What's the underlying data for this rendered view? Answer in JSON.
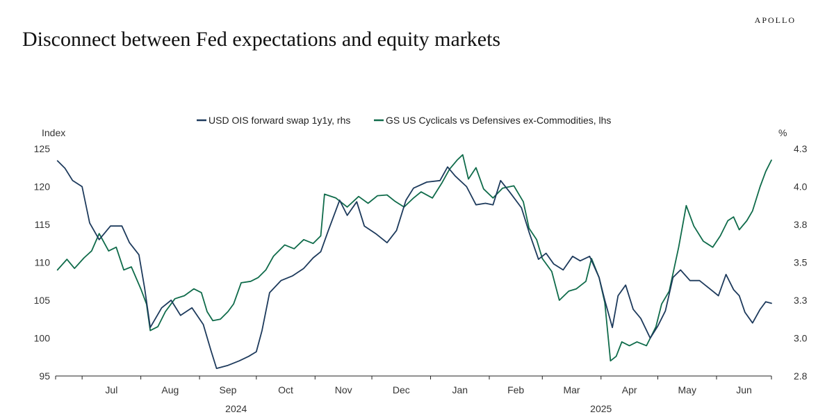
{
  "header": {
    "brand": "APOLLO",
    "title": "Disconnect between Fed expectations and equity markets"
  },
  "colors": {
    "ois": "#1d3a5c",
    "gs": "#0f6b4a",
    "axis": "#222222"
  },
  "chart_data": {
    "type": "line",
    "title": "Disconnect between Fed expectations and equity markets",
    "left_axis": {
      "unit": "Index",
      "min": 95,
      "max": 125,
      "ticks": [
        95,
        100,
        105,
        110,
        115,
        120,
        125
      ]
    },
    "right_axis": {
      "unit": "%",
      "min": 2.8,
      "max": 4.3,
      "ticks": [
        "2.8",
        "3.0",
        "3.3",
        "3.5",
        "3.8",
        "4.0",
        "4.3"
      ],
      "tick_values": [
        2.8,
        3.05,
        3.3,
        3.55,
        3.8,
        4.05,
        4.3
      ]
    },
    "x_months": [
      "Jul",
      "Aug",
      "Sep",
      "Oct",
      "Nov",
      "Dec",
      "Jan",
      "Feb",
      "Mar",
      "Apr",
      "May",
      "Jun"
    ],
    "x_years": [
      "2024",
      "2025"
    ],
    "x_range": [
      "2024-06-17",
      "2025-06-30"
    ],
    "legend": [
      "USD OIS forward swap 1y1y, rhs",
      "GS US Cyclicals vs Defensives ex-Commodities, lhs"
    ],
    "series": [
      {
        "name": "USD OIS forward swap 1y1y, rhs",
        "axis": "right",
        "points": [
          [
            "2024-06-18",
            4.22
          ],
          [
            "2024-06-22",
            4.17
          ],
          [
            "2024-06-26",
            4.09
          ],
          [
            "2024-07-01",
            4.05
          ],
          [
            "2024-07-05",
            3.81
          ],
          [
            "2024-07-10",
            3.7
          ],
          [
            "2024-07-16",
            3.79
          ],
          [
            "2024-07-22",
            3.79
          ],
          [
            "2024-07-26",
            3.68
          ],
          [
            "2024-07-31",
            3.6
          ],
          [
            "2024-08-03",
            3.38
          ],
          [
            "2024-08-06",
            3.12
          ],
          [
            "2024-08-12",
            3.25
          ],
          [
            "2024-08-17",
            3.3
          ],
          [
            "2024-08-22",
            3.2
          ],
          [
            "2024-08-28",
            3.25
          ],
          [
            "2024-09-03",
            3.14
          ],
          [
            "2024-09-07",
            2.97
          ],
          [
            "2024-09-10",
            2.85
          ],
          [
            "2024-09-16",
            2.87
          ],
          [
            "2024-09-22",
            2.9
          ],
          [
            "2024-09-27",
            2.93
          ],
          [
            "2024-10-01",
            2.96
          ],
          [
            "2024-10-04",
            3.1
          ],
          [
            "2024-10-08",
            3.35
          ],
          [
            "2024-10-14",
            3.43
          ],
          [
            "2024-10-20",
            3.46
          ],
          [
            "2024-10-26",
            3.51
          ],
          [
            "2024-10-31",
            3.58
          ],
          [
            "2024-11-04",
            3.62
          ],
          [
            "2024-11-08",
            3.76
          ],
          [
            "2024-11-14",
            3.96
          ],
          [
            "2024-11-18",
            3.86
          ],
          [
            "2024-11-23",
            3.95
          ],
          [
            "2024-11-27",
            3.79
          ],
          [
            "2024-12-03",
            3.74
          ],
          [
            "2024-12-09",
            3.68
          ],
          [
            "2024-12-14",
            3.76
          ],
          [
            "2024-12-19",
            3.96
          ],
          [
            "2024-12-23",
            4.04
          ],
          [
            "2024-12-30",
            4.08
          ],
          [
            "2025-01-06",
            4.09
          ],
          [
            "2025-01-10",
            4.18
          ],
          [
            "2025-01-14",
            4.12
          ],
          [
            "2025-01-20",
            4.05
          ],
          [
            "2025-01-25",
            3.93
          ],
          [
            "2025-01-30",
            3.94
          ],
          [
            "2025-02-03",
            3.93
          ],
          [
            "2025-02-07",
            4.09
          ],
          [
            "2025-02-12",
            4.01
          ],
          [
            "2025-02-18",
            3.91
          ],
          [
            "2025-02-22",
            3.75
          ],
          [
            "2025-02-27",
            3.57
          ],
          [
            "2025-03-03",
            3.61
          ],
          [
            "2025-03-07",
            3.54
          ],
          [
            "2025-03-12",
            3.5
          ],
          [
            "2025-03-17",
            3.59
          ],
          [
            "2025-03-21",
            3.56
          ],
          [
            "2025-03-26",
            3.59
          ],
          [
            "2025-03-31",
            3.45
          ],
          [
            "2025-04-03",
            3.3
          ],
          [
            "2025-04-07",
            3.12
          ],
          [
            "2025-04-10",
            3.33
          ],
          [
            "2025-04-14",
            3.4
          ],
          [
            "2025-04-18",
            3.24
          ],
          [
            "2025-04-22",
            3.18
          ],
          [
            "2025-04-27",
            3.05
          ],
          [
            "2025-05-01",
            3.13
          ],
          [
            "2025-05-05",
            3.23
          ],
          [
            "2025-05-09",
            3.45
          ],
          [
            "2025-05-13",
            3.5
          ],
          [
            "2025-05-18",
            3.43
          ],
          [
            "2025-05-23",
            3.43
          ],
          [
            "2025-05-28",
            3.38
          ],
          [
            "2025-06-02",
            3.33
          ],
          [
            "2025-06-06",
            3.47
          ],
          [
            "2025-06-10",
            3.37
          ],
          [
            "2025-06-13",
            3.33
          ],
          [
            "2025-06-16",
            3.22
          ],
          [
            "2025-06-20",
            3.15
          ],
          [
            "2025-06-24",
            3.24
          ],
          [
            "2025-06-27",
            3.29
          ],
          [
            "2025-06-30",
            3.28
          ]
        ]
      },
      {
        "name": "GS US Cyclicals vs Defensives ex-Commodities, lhs",
        "axis": "left",
        "points": [
          [
            "2024-06-18",
            109.0
          ],
          [
            "2024-06-23",
            110.4
          ],
          [
            "2024-06-27",
            109.2
          ],
          [
            "2024-07-02",
            110.6
          ],
          [
            "2024-07-06",
            111.5
          ],
          [
            "2024-07-10",
            113.8
          ],
          [
            "2024-07-15",
            111.5
          ],
          [
            "2024-07-19",
            112.0
          ],
          [
            "2024-07-23",
            109.0
          ],
          [
            "2024-07-27",
            109.4
          ],
          [
            "2024-08-01",
            106.5
          ],
          [
            "2024-08-04",
            104.5
          ],
          [
            "2024-08-06",
            101.0
          ],
          [
            "2024-08-10",
            101.5
          ],
          [
            "2024-08-14",
            103.5
          ],
          [
            "2024-08-19",
            105.2
          ],
          [
            "2024-08-24",
            105.6
          ],
          [
            "2024-08-29",
            106.5
          ],
          [
            "2024-09-02",
            106.0
          ],
          [
            "2024-09-05",
            103.5
          ],
          [
            "2024-09-08",
            102.3
          ],
          [
            "2024-09-12",
            102.5
          ],
          [
            "2024-09-16",
            103.5
          ],
          [
            "2024-09-19",
            104.5
          ],
          [
            "2024-09-23",
            107.3
          ],
          [
            "2024-09-28",
            107.5
          ],
          [
            "2024-10-02",
            108.0
          ],
          [
            "2024-10-06",
            109.0
          ],
          [
            "2024-10-10",
            110.8
          ],
          [
            "2024-10-16",
            112.3
          ],
          [
            "2024-10-21",
            111.8
          ],
          [
            "2024-10-26",
            113.0
          ],
          [
            "2024-10-31",
            112.5
          ],
          [
            "2024-11-04",
            113.5
          ],
          [
            "2024-11-06",
            119.0
          ],
          [
            "2024-11-12",
            118.5
          ],
          [
            "2024-11-18",
            117.3
          ],
          [
            "2024-11-24",
            118.7
          ],
          [
            "2024-11-29",
            117.8
          ],
          [
            "2024-12-04",
            118.8
          ],
          [
            "2024-12-09",
            118.9
          ],
          [
            "2024-12-13",
            118.1
          ],
          [
            "2024-12-18",
            117.3
          ],
          [
            "2024-12-23",
            118.5
          ],
          [
            "2024-12-27",
            119.3
          ],
          [
            "2025-01-02",
            118.5
          ],
          [
            "2025-01-07",
            120.5
          ],
          [
            "2025-01-11",
            122.3
          ],
          [
            "2025-01-15",
            123.5
          ],
          [
            "2025-01-18",
            124.2
          ],
          [
            "2025-01-21",
            121.0
          ],
          [
            "2025-01-25",
            122.5
          ],
          [
            "2025-01-29",
            119.7
          ],
          [
            "2025-02-03",
            118.5
          ],
          [
            "2025-02-08",
            119.8
          ],
          [
            "2025-02-14",
            120.1
          ],
          [
            "2025-02-19",
            118.0
          ],
          [
            "2025-02-22",
            114.5
          ],
          [
            "2025-02-26",
            113.0
          ],
          [
            "2025-03-01",
            110.5
          ],
          [
            "2025-03-06",
            108.8
          ],
          [
            "2025-03-10",
            105.0
          ],
          [
            "2025-03-15",
            106.2
          ],
          [
            "2025-03-19",
            106.5
          ],
          [
            "2025-03-24",
            107.5
          ],
          [
            "2025-03-27",
            110.5
          ],
          [
            "2025-03-31",
            108.0
          ],
          [
            "2025-04-03",
            104.7
          ],
          [
            "2025-04-06",
            97.0
          ],
          [
            "2025-04-09",
            97.6
          ],
          [
            "2025-04-12",
            99.5
          ],
          [
            "2025-04-16",
            99.0
          ],
          [
            "2025-04-20",
            99.5
          ],
          [
            "2025-04-25",
            99.0
          ],
          [
            "2025-04-30",
            101.5
          ],
          [
            "2025-05-03",
            104.5
          ],
          [
            "2025-05-07",
            106.2
          ],
          [
            "2025-05-12",
            112.0
          ],
          [
            "2025-05-16",
            117.5
          ],
          [
            "2025-05-20",
            114.8
          ],
          [
            "2025-05-25",
            112.8
          ],
          [
            "2025-05-30",
            112.0
          ],
          [
            "2025-06-03",
            113.5
          ],
          [
            "2025-06-07",
            115.5
          ],
          [
            "2025-06-10",
            116.0
          ],
          [
            "2025-06-13",
            114.3
          ],
          [
            "2025-06-17",
            115.5
          ],
          [
            "2025-06-20",
            116.8
          ],
          [
            "2025-06-24",
            120.0
          ],
          [
            "2025-06-27",
            122.0
          ],
          [
            "2025-06-30",
            123.5
          ]
        ]
      }
    ]
  }
}
